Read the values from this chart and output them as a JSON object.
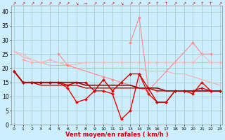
{
  "background_color": "#cceeff",
  "grid_color": "#aacccc",
  "xlabel": "Vent moyen/en rafales ( km/h )",
  "x_ticks": [
    0,
    1,
    2,
    3,
    4,
    5,
    6,
    7,
    8,
    9,
    10,
    11,
    12,
    13,
    14,
    15,
    16,
    17,
    18,
    19,
    20,
    21,
    22,
    23
  ],
  "ylim": [
    0,
    42
  ],
  "yticks": [
    0,
    5,
    10,
    15,
    20,
    25,
    30,
    35,
    40
  ],
  "series": [
    {
      "color": "#ffaaaa",
      "lw": 0.8,
      "marker": null,
      "values": [
        26,
        24,
        23,
        22,
        21,
        21,
        21,
        20,
        20,
        20,
        20,
        20,
        20,
        20,
        20,
        19,
        19,
        19,
        18,
        18,
        17,
        16,
        15,
        14
      ]
    },
    {
      "color": "#ffaaaa",
      "lw": 0.8,
      "marker": "D",
      "markersize": 2,
      "values": [
        null,
        23,
        22,
        22,
        23,
        null,
        21,
        null,
        22,
        null,
        22,
        null,
        22,
        null,
        22,
        22,
        22,
        22,
        22,
        22,
        22,
        null,
        22,
        22
      ]
    },
    {
      "color": "#ff8888",
      "lw": 0.8,
      "marker": "D",
      "markersize": 2,
      "values": [
        null,
        null,
        null,
        null,
        null,
        null,
        null,
        null,
        null,
        null,
        null,
        null,
        null,
        29,
        38,
        13,
        12,
        null,
        null,
        null,
        null,
        null,
        null,
        null
      ]
    },
    {
      "color": "#ff8888",
      "lw": 0.8,
      "marker": "D",
      "markersize": 2,
      "values": [
        null,
        null,
        null,
        null,
        null,
        25,
        21,
        null,
        null,
        null,
        17,
        16,
        null,
        null,
        null,
        12,
        null,
        null,
        null,
        null,
        29,
        25,
        25,
        null
      ]
    },
    {
      "color": "#ffbbbb",
      "lw": 0.8,
      "marker": null,
      "values": [
        26,
        25,
        23,
        22,
        22,
        22,
        22,
        22,
        22,
        22,
        22,
        22,
        22,
        22,
        22,
        22,
        22,
        22,
        22,
        22,
        22,
        25,
        22,
        22
      ]
    },
    {
      "color": "#ee0000",
      "lw": 1.0,
      "marker": "D",
      "markersize": 2,
      "values": [
        19,
        15,
        15,
        15,
        15,
        15,
        13,
        8,
        9,
        12,
        12,
        11,
        2,
        5,
        18,
        11,
        8,
        8,
        12,
        12,
        11,
        15,
        12,
        12
      ]
    },
    {
      "color": "#cc0000",
      "lw": 1.0,
      "marker": "D",
      "markersize": 2,
      "values": [
        19,
        15,
        15,
        15,
        15,
        15,
        14,
        15,
        15,
        12,
        16,
        12,
        15,
        18,
        18,
        13,
        8,
        8,
        12,
        12,
        12,
        13,
        12,
        12
      ]
    },
    {
      "color": "#990000",
      "lw": 1.2,
      "marker": null,
      "values": [
        19,
        15,
        15,
        15,
        15,
        15,
        15,
        15,
        14,
        14,
        14,
        14,
        14,
        14,
        13,
        13,
        13,
        12,
        12,
        12,
        12,
        12,
        12,
        12
      ]
    },
    {
      "color": "#bb0000",
      "lw": 1.0,
      "marker": null,
      "values": [
        19,
        15,
        15,
        14,
        14,
        14,
        14,
        14,
        13,
        13,
        13,
        13,
        13,
        13,
        13,
        13,
        12,
        12,
        12,
        12,
        12,
        12,
        12,
        12
      ]
    }
  ]
}
